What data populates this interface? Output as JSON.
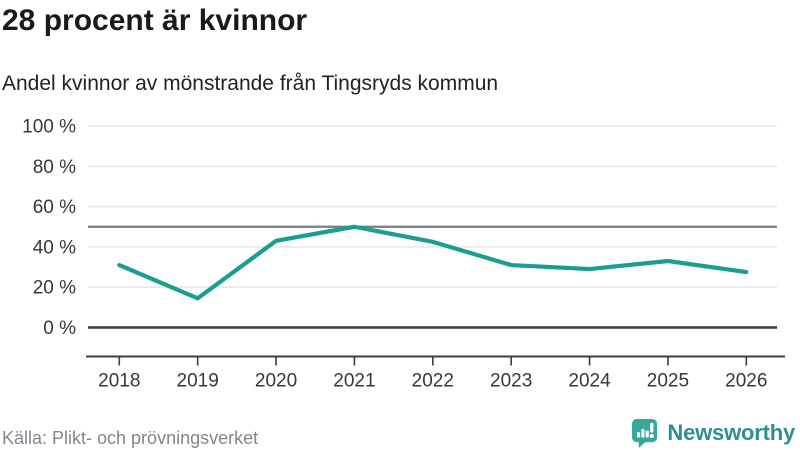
{
  "header": {
    "title": "28 procent är kvinnor",
    "subtitle": "Andel kvinnor av mönstrande från Tingsryds kommun"
  },
  "chart_data": {
    "type": "line",
    "title": "28 procent är kvinnor",
    "subtitle": "Andel kvinnor av mönstrande från Tingsryds kommun",
    "x": [
      "2018",
      "2019",
      "2020",
      "2021",
      "2022",
      "2023",
      "2024",
      "2025",
      "2026"
    ],
    "series": [
      {
        "name": "Andel kvinnor av mönstrande",
        "values": [
          31,
          14.5,
          43,
          50,
          42.5,
          31,
          29,
          33,
          27.5
        ]
      }
    ],
    "ylim": [
      0,
      100
    ],
    "yticks": [
      0,
      20,
      40,
      60,
      80,
      100
    ],
    "ytick_suffix": " %",
    "reference_line": 50,
    "grid": true,
    "legend": "none",
    "line_color": "#1a9e8f",
    "grid_color": "#e8e8e8",
    "reference_line_color": "#7d7d7d",
    "axis_color": "#3c3c3c",
    "tick_label_color": "#383838"
  },
  "footer": {
    "source": "Källa: Plikt- och prövningsverket",
    "brand": "Newsworthy",
    "brand_color": "#2e8f8f",
    "icon": "newsworthy-chart-bubble-icon",
    "icon_color": "#3aa79c"
  }
}
